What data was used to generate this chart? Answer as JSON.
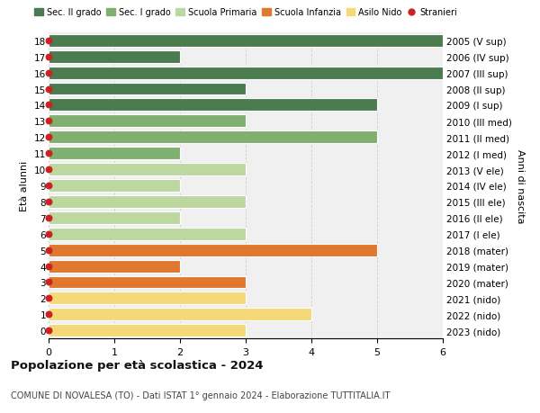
{
  "ages": [
    18,
    17,
    16,
    15,
    14,
    13,
    12,
    11,
    10,
    9,
    8,
    7,
    6,
    5,
    4,
    3,
    2,
    1,
    0
  ],
  "right_labels": [
    "2005 (V sup)",
    "2006 (IV sup)",
    "2007 (III sup)",
    "2008 (II sup)",
    "2009 (I sup)",
    "2010 (III med)",
    "2011 (II med)",
    "2012 (I med)",
    "2013 (V ele)",
    "2014 (IV ele)",
    "2015 (III ele)",
    "2016 (II ele)",
    "2017 (I ele)",
    "2018 (mater)",
    "2019 (mater)",
    "2020 (mater)",
    "2021 (nido)",
    "2022 (nido)",
    "2023 (nido)"
  ],
  "bar_values": [
    6,
    2,
    6,
    3,
    5,
    3,
    5,
    2,
    3,
    2,
    3,
    2,
    3,
    5,
    2,
    3,
    3,
    4,
    3
  ],
  "bar_colors": [
    "#4a7c50",
    "#4a7c50",
    "#4a7c50",
    "#4a7c50",
    "#4a7c50",
    "#80b070",
    "#80b070",
    "#80b070",
    "#bcd8a0",
    "#bcd8a0",
    "#bcd8a0",
    "#bcd8a0",
    "#bcd8a0",
    "#e07830",
    "#e07830",
    "#e07830",
    "#f5d878",
    "#f5d878",
    "#f5d878"
  ],
  "dot_color": "#cc2222",
  "dot_size": 22,
  "legend_items": [
    {
      "label": "Sec. II grado",
      "color": "#4a7c50",
      "type": "patch"
    },
    {
      "label": "Sec. I grado",
      "color": "#80b070",
      "type": "patch"
    },
    {
      "label": "Scuola Primaria",
      "color": "#bcd8a0",
      "type": "patch"
    },
    {
      "label": "Scuola Infanzia",
      "color": "#e07830",
      "type": "patch"
    },
    {
      "label": "Asilo Nido",
      "color": "#f5d878",
      "type": "patch"
    },
    {
      "label": "Stranieri",
      "color": "#cc2222",
      "type": "dot"
    }
  ],
  "ylabel": "Età alunni",
  "right_ylabel": "Anni di nascita",
  "xlim": [
    0,
    6
  ],
  "xticks": [
    0,
    1,
    2,
    3,
    4,
    5,
    6
  ],
  "title": "Popolazione per età scolastica - 2024",
  "subtitle": "COMUNE DI NOVALESA (TO) - Dati ISTAT 1° gennaio 2024 - Elaborazione TUTTITALIA.IT",
  "bg_color": "#f0f0f0",
  "bar_height": 0.78,
  "grid_color": "#d0d0d0"
}
